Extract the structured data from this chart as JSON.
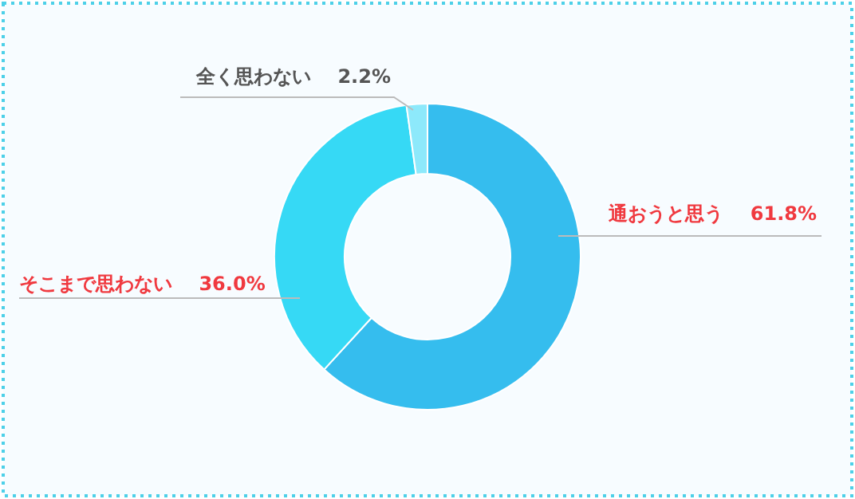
{
  "chart_data": {
    "type": "donut",
    "categories": [
      "通おうと思う",
      "そこまで思わない",
      "全く思わない"
    ],
    "values": [
      61.8,
      36.0,
      2.2
    ],
    "colors": [
      "#35bdee",
      "#36d9f5",
      "#8de9fb"
    ],
    "value_labels": [
      "61.8%",
      "36.0%",
      "2.2%"
    ]
  }
}
